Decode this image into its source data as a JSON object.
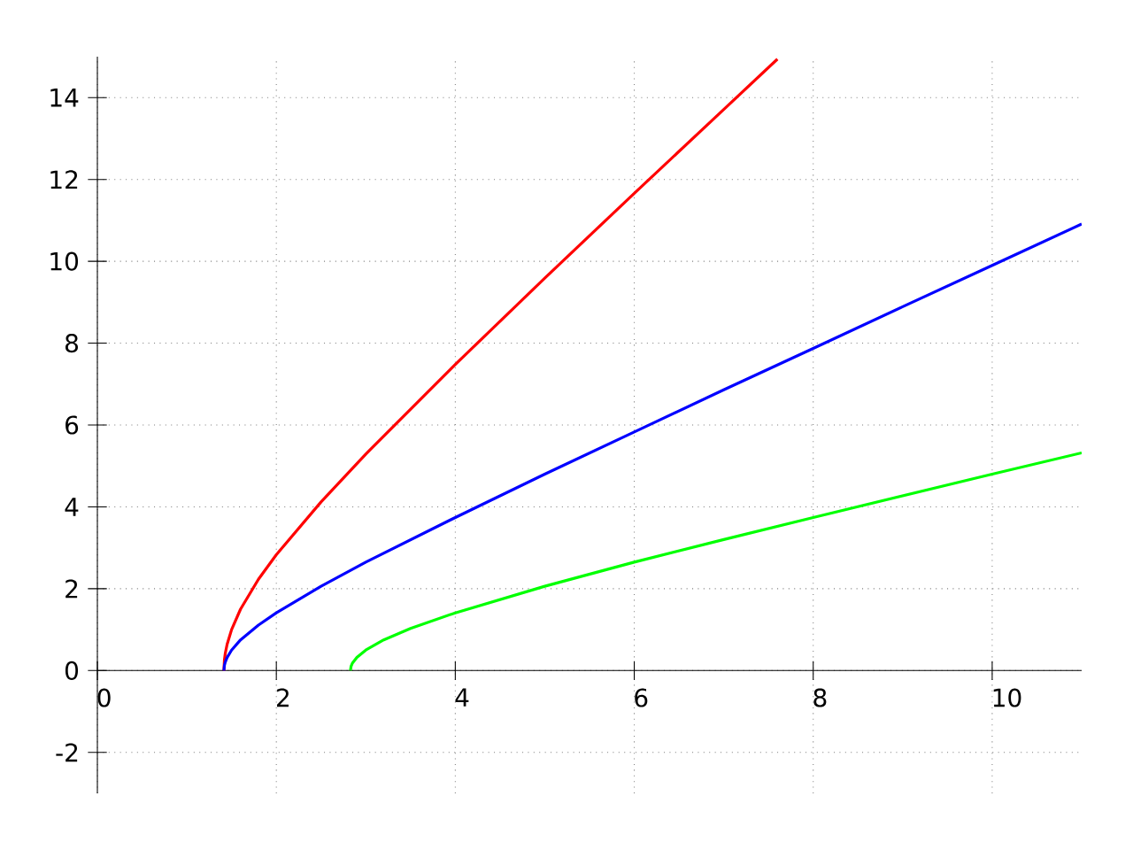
{
  "chart_data": {
    "type": "line",
    "xlim": [
      0,
      11
    ],
    "ylim": [
      -3,
      15
    ],
    "xticks": [
      0,
      2,
      4,
      6,
      8,
      10
    ],
    "yticks": [
      -2,
      0,
      2,
      4,
      6,
      8,
      10,
      12,
      14
    ],
    "grid": true,
    "series": [
      {
        "color": "#ff0000",
        "x": [
          1.414,
          1.42,
          1.43,
          1.45,
          1.5,
          1.6,
          1.8,
          2,
          2.5,
          3,
          4,
          5,
          6,
          7,
          7.6
        ],
        "values": [
          0,
          0.26,
          0.43,
          0.64,
          1.0,
          1.5,
          2.23,
          2.83,
          4.12,
          5.29,
          7.48,
          9.59,
          11.66,
          13.71,
          14.94
        ]
      },
      {
        "color": "#0000ff",
        "x": [
          1.414,
          1.42,
          1.43,
          1.45,
          1.5,
          1.6,
          1.8,
          2,
          2.5,
          3,
          4,
          5,
          6,
          7,
          8,
          9,
          10,
          11
        ],
        "values": [
          0,
          0.13,
          0.21,
          0.32,
          0.5,
          0.75,
          1.11,
          1.41,
          2.06,
          2.65,
          3.74,
          4.8,
          5.83,
          6.86,
          7.87,
          8.89,
          9.9,
          10.91
        ]
      },
      {
        "color": "#00ff00",
        "x": [
          2.828,
          2.835,
          2.85,
          2.9,
          3,
          3.2,
          3.5,
          4,
          5,
          6,
          7,
          8,
          9,
          10,
          11
        ],
        "values": [
          0,
          0.1,
          0.18,
          0.32,
          0.5,
          0.75,
          1.03,
          1.41,
          2.06,
          2.65,
          3.2,
          3.74,
          4.27,
          4.8,
          5.32
        ]
      }
    ]
  }
}
